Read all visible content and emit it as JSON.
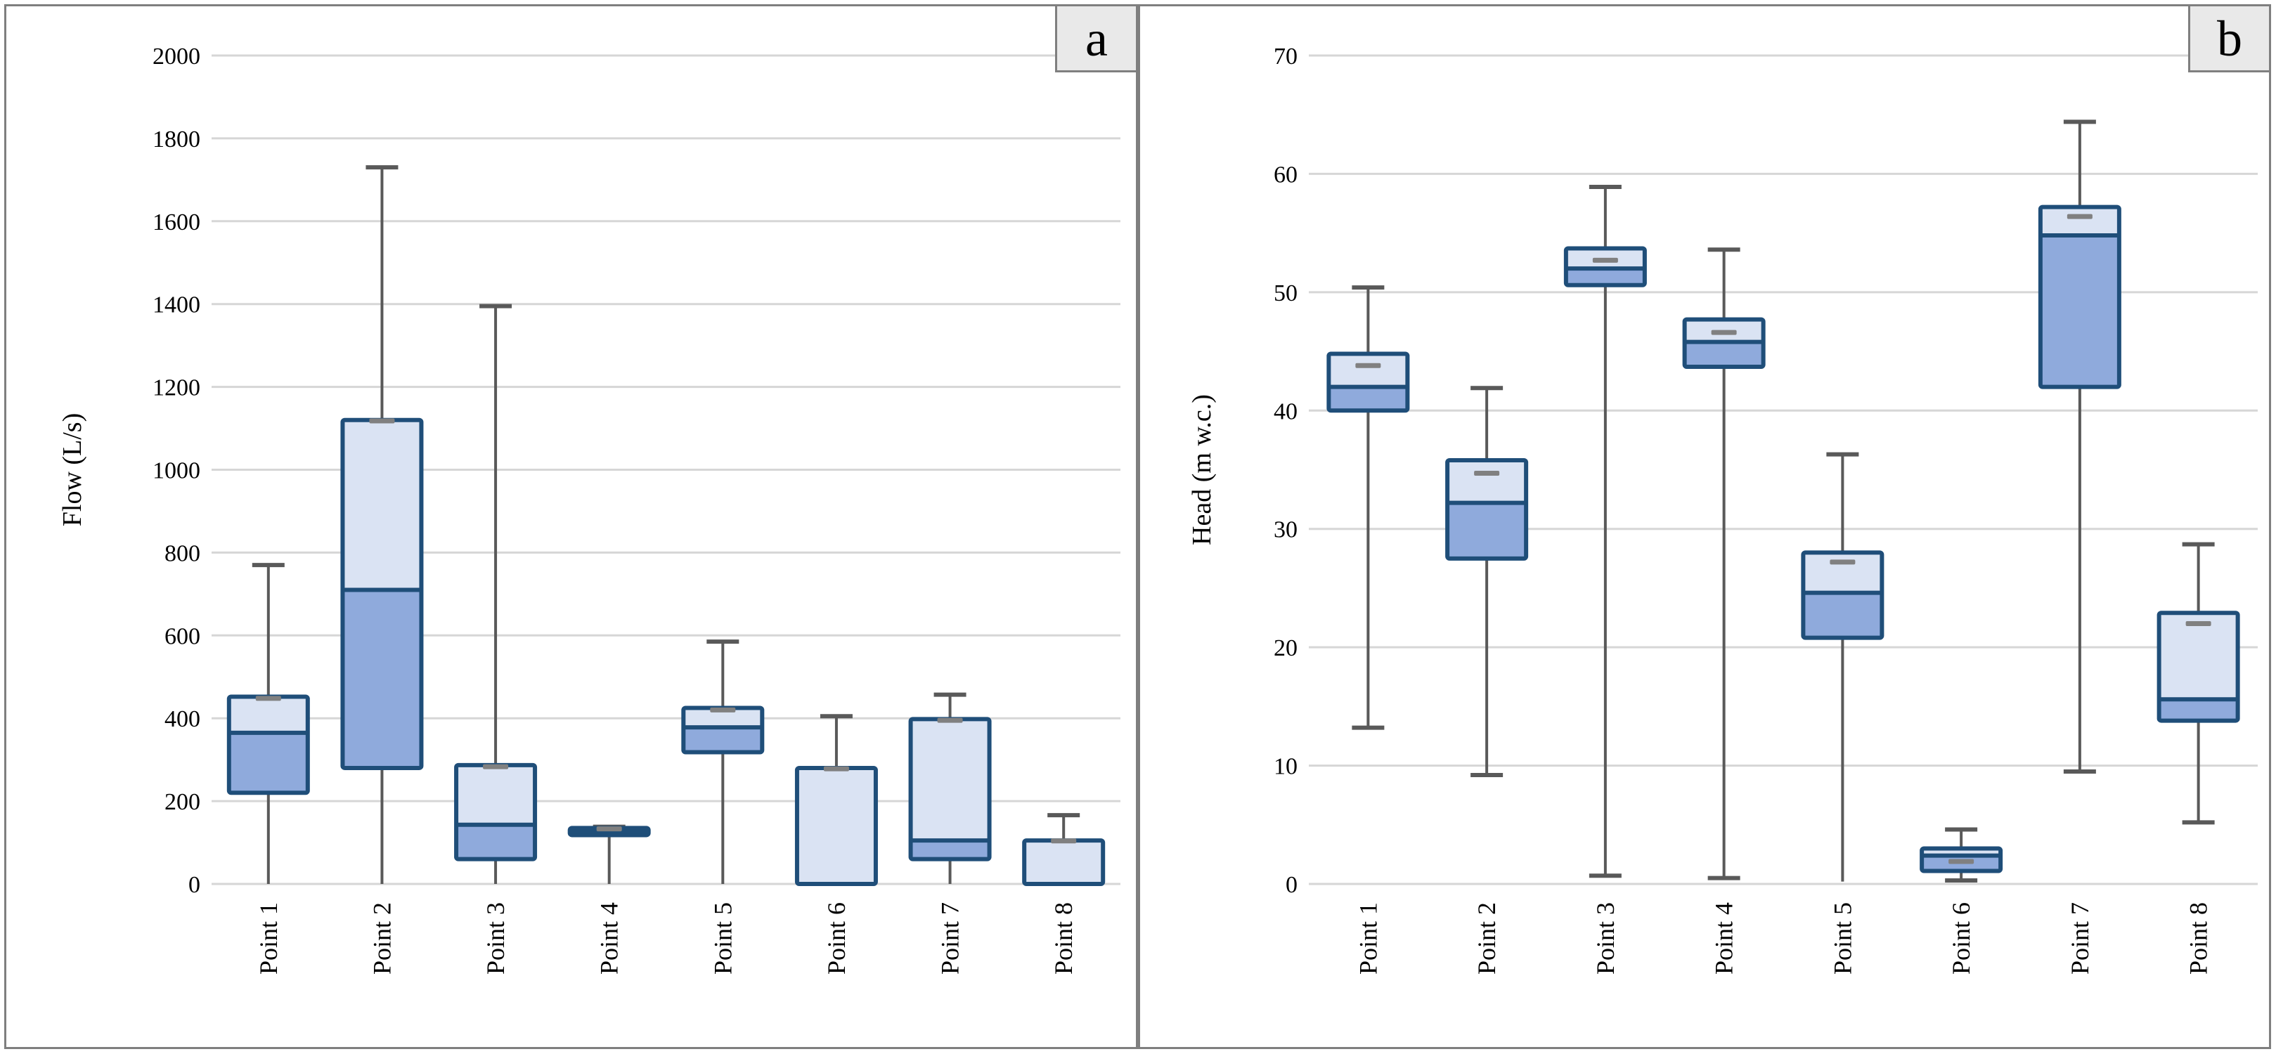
{
  "figure_title": "",
  "colors": {
    "box_light": "#dae3f3",
    "box_dark": "#8faadc",
    "box_border": "#1f4e79",
    "median": "#1f4e79",
    "whisker": "#595959",
    "mean_marker": "#808080",
    "gridline": "#d6d6d6",
    "panel_border": "#7f7f7f",
    "label_box_bg": "#e9e9e9",
    "text": "#000000"
  },
  "chart_data": [
    {
      "type": "boxplot",
      "panel_label": "a",
      "ylabel": "Flow (L/s)",
      "ylim": [
        0,
        2000
      ],
      "yticks": [
        0,
        200,
        400,
        600,
        800,
        1000,
        1200,
        1400,
        1600,
        1800,
        2000
      ],
      "grid": "horizontal",
      "legend": "none",
      "categories": [
        "Point 1",
        "Point 2",
        "Point 3",
        "Point 4",
        "Point 5",
        "Point 6",
        "Point 7",
        "Point 8"
      ],
      "series": [
        {
          "name": "Point 1",
          "min": 0,
          "q1": 220,
          "median": 365,
          "q3": 452,
          "max": 770,
          "mean": 448
        },
        {
          "name": "Point 2",
          "min": 0,
          "q1": 280,
          "median": 710,
          "q3": 1120,
          "max": 1730,
          "mean": 1118
        },
        {
          "name": "Point 3",
          "min": 0,
          "q1": 60,
          "median": 143,
          "q3": 287,
          "max": 1395,
          "mean": 283
        },
        {
          "name": "Point 4",
          "min": 0,
          "q1": 118,
          "median": 127,
          "q3": 135,
          "max": 138,
          "mean": 133
        },
        {
          "name": "Point 5",
          "min": 0,
          "q1": 318,
          "median": 378,
          "q3": 425,
          "max": 585,
          "mean": 420
        },
        {
          "name": "Point 6",
          "min": 0,
          "q1": 0,
          "median": 0,
          "q3": 280,
          "max": 405,
          "mean": 278
        },
        {
          "name": "Point 7",
          "min": 0,
          "q1": 60,
          "median": 105,
          "q3": 398,
          "max": 457,
          "mean": 395
        },
        {
          "name": "Point 8",
          "min": 0,
          "q1": 0,
          "median": 0,
          "q3": 105,
          "max": 166,
          "mean": 104
        }
      ]
    },
    {
      "type": "boxplot",
      "panel_label": "b",
      "ylabel": "Head (m w.c.)",
      "ylim": [
        0,
        70
      ],
      "yticks": [
        0,
        10,
        20,
        30,
        40,
        50,
        60,
        70
      ],
      "grid": "horizontal",
      "legend": "none",
      "categories": [
        "Point 1",
        "Point 2",
        "Point 3",
        "Point 4",
        "Point 5",
        "Point 6",
        "Point 7",
        "Point 8"
      ],
      "series": [
        {
          "name": "Point 1",
          "min": 13.2,
          "q1": 40,
          "median": 42,
          "q3": 44.8,
          "max": 50.4,
          "mean": 43.8
        },
        {
          "name": "Point 2",
          "min": 9.2,
          "q1": 27.5,
          "median": 32.2,
          "q3": 35.8,
          "max": 41.9,
          "mean": 34.7
        },
        {
          "name": "Point 3",
          "min": 0.7,
          "q1": 50.6,
          "median": 52,
          "q3": 53.7,
          "max": 58.9,
          "mean": 52.7
        },
        {
          "name": "Point 4",
          "min": 0.5,
          "q1": 43.7,
          "median": 45.8,
          "q3": 47.7,
          "max": 53.6,
          "mean": 46.6
        },
        {
          "name": "Point 5",
          "min": 0.2,
          "q1": 20.8,
          "median": 24.6,
          "q3": 28,
          "max": 36.3,
          "mean": 27.2
        },
        {
          "name": "Point 6",
          "min": 0.3,
          "q1": 1.1,
          "median": 2.4,
          "q3": 3,
          "max": 4.6,
          "mean": 1.9
        },
        {
          "name": "Point 7",
          "min": 9.5,
          "q1": 42,
          "median": 54.8,
          "q3": 57.2,
          "max": 64.4,
          "mean": 56.4
        },
        {
          "name": "Point 8",
          "min": 5.2,
          "q1": 13.8,
          "median": 15.6,
          "q3": 22.9,
          "max": 28.7,
          "mean": 22
        }
      ]
    }
  ]
}
